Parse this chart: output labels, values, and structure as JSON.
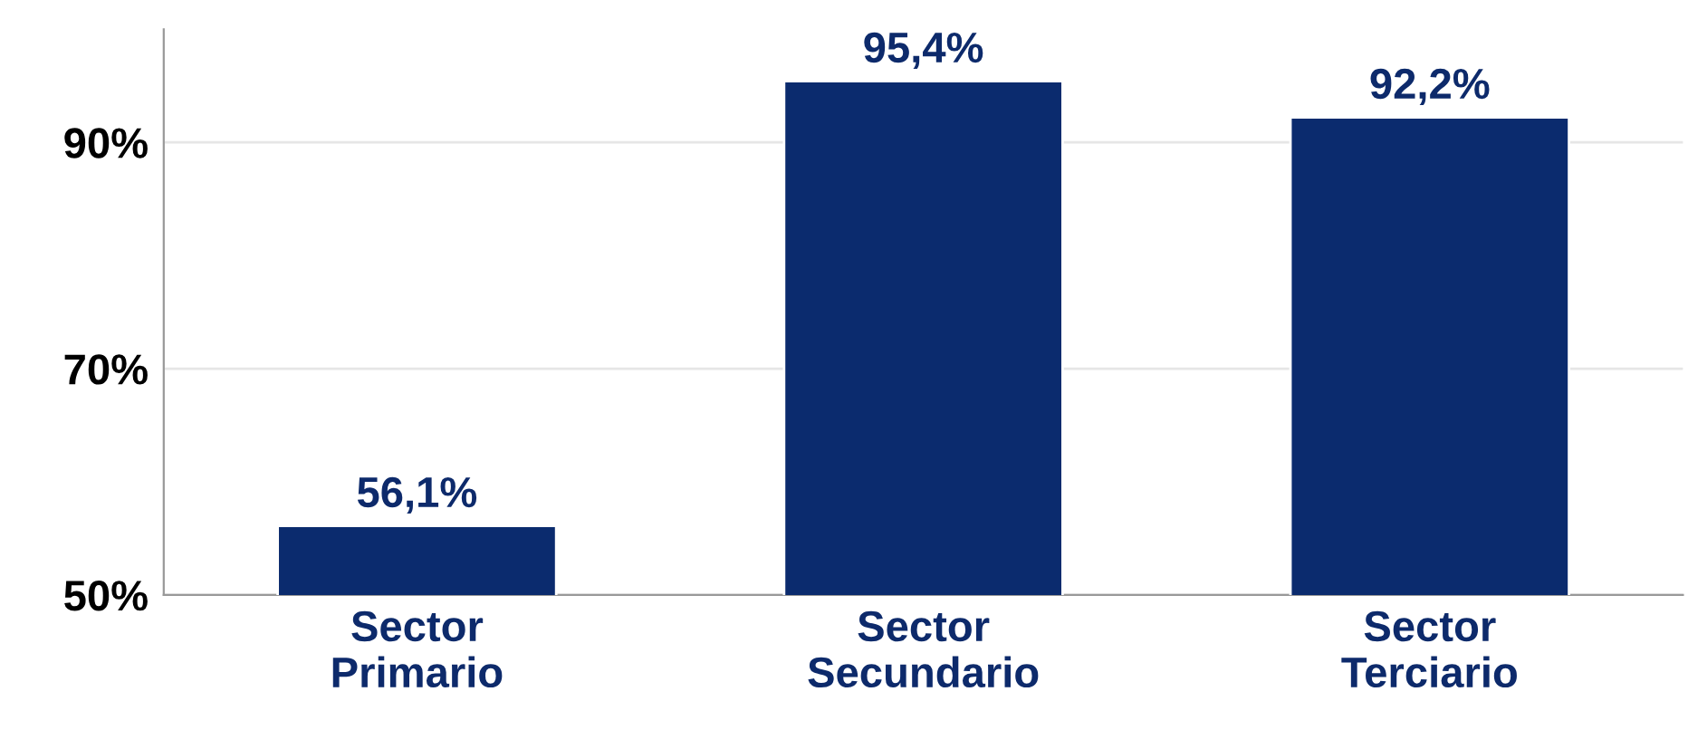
{
  "chart_data": {
    "type": "bar",
    "categories": [
      "Sector\nPrimario",
      "Sector\nSecundario",
      "Sector\nTerciario"
    ],
    "values": [
      56.1,
      95.4,
      92.2
    ],
    "value_labels": [
      "56,1%",
      "95,4%",
      "92,2%"
    ],
    "color": "#0b2b6e",
    "ylim": [
      50,
      100
    ],
    "yticks": [
      {
        "value": 50,
        "label": "50%"
      },
      {
        "value": 70,
        "label": "70%"
      },
      {
        "value": 90,
        "label": "90%"
      }
    ],
    "grid": "y"
  }
}
